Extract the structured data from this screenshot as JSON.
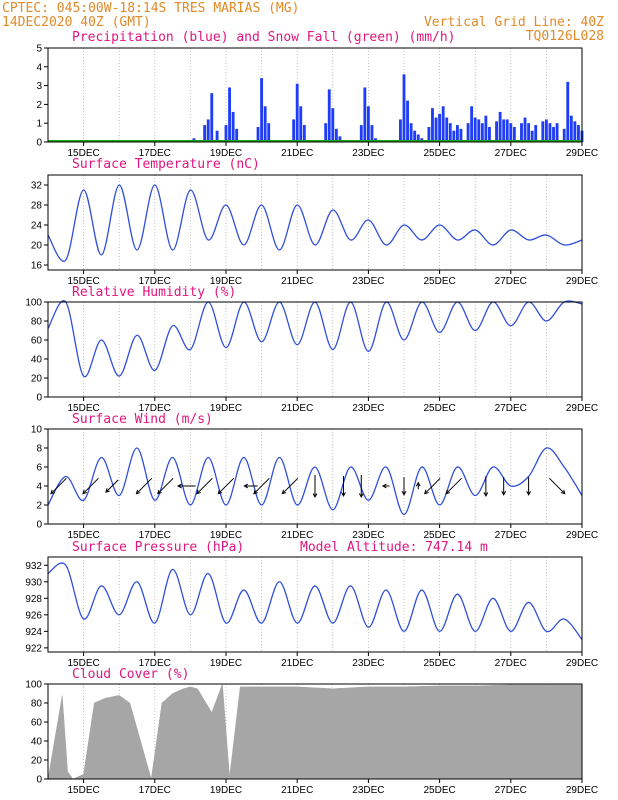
{
  "header": {
    "line1_left": "CPTEC:   045:00W-18:14S  TRES MARIAS (MG)",
    "line2_left": "14DEC2020 40Z (GMT)",
    "line2_right": "Vertical Grid Line: 40Z",
    "line3_right": "TQ0126L028"
  },
  "colors": {
    "header": "#e08a2a",
    "title": "#e0157f",
    "precip": "#1f3df5",
    "snow": "#1aa31a",
    "line": "#2f4fdc",
    "wind_arrow": "#000000",
    "cloud": "#a6a6a6"
  },
  "x_ticks": [
    "15DEC",
    "17DEC",
    "19DEC",
    "21DEC",
    "23DEC",
    "25DEC",
    "27DEC",
    "29DEC"
  ],
  "chart_data": [
    {
      "type": "bar",
      "title": "Precipitation (blue) and Snow Fall (green) (mm/h)",
      "x_unit": "day offset from 14DEC2020 00Z",
      "ylim": [
        0,
        5
      ],
      "yticks": [
        "0",
        "1",
        "2",
        "3",
        "4",
        "5"
      ],
      "series": [
        {
          "name": "Precipitation",
          "x": [
            4.1,
            4.4,
            4.5,
            4.6,
            4.75,
            5.0,
            5.1,
            5.2,
            5.3,
            5.9,
            6.0,
            6.1,
            6.2,
            6.9,
            7.0,
            7.1,
            7.2,
            7.8,
            7.9,
            8.0,
            8.1,
            8.2,
            8.8,
            8.9,
            9.0,
            9.1,
            9.2,
            9.9,
            10.0,
            10.1,
            10.2,
            10.3,
            10.4,
            10.5,
            10.7,
            10.8,
            10.9,
            11.0,
            11.1,
            11.2,
            11.3,
            11.4,
            11.5,
            11.6,
            11.8,
            11.9,
            12.0,
            12.1,
            12.2,
            12.3,
            12.4,
            12.6,
            12.7,
            12.8,
            12.9,
            13.0,
            13.1,
            13.3,
            13.4,
            13.5,
            13.6,
            13.7,
            13.9,
            14.0,
            14.1,
            14.2,
            14.3,
            14.5,
            14.6,
            14.7,
            14.8,
            14.9,
            15.0
          ],
          "values": [
            0.2,
            0.9,
            1.2,
            2.6,
            0.6,
            0.9,
            2.9,
            1.6,
            0.7,
            0.8,
            3.4,
            1.9,
            1.0,
            1.2,
            3.1,
            1.9,
            0.9,
            1.0,
            2.8,
            1.8,
            0.7,
            0.3,
            0.9,
            2.9,
            1.9,
            0.9,
            0.2,
            1.2,
            3.6,
            2.2,
            1.0,
            0.6,
            0.4,
            0.2,
            0.8,
            1.8,
            1.3,
            1.5,
            1.9,
            1.3,
            1.0,
            0.6,
            0.9,
            0.7,
            1.0,
            1.9,
            1.3,
            1.2,
            1.0,
            1.4,
            0.8,
            1.1,
            1.6,
            1.2,
            1.2,
            1.0,
            0.8,
            1.0,
            1.3,
            1.0,
            0.6,
            0.9,
            1.1,
            1.2,
            1.0,
            0.8,
            1.0,
            0.7,
            3.2,
            1.4,
            1.1,
            0.9,
            0.6
          ]
        },
        {
          "name": "Snow Fall",
          "x": [
            0,
            15
          ],
          "values": [
            0,
            0
          ]
        }
      ]
    },
    {
      "type": "line",
      "title": "Surface Temperature (nC)",
      "x_unit": "day offset from 14DEC2020 00Z",
      "ylim": [
        15,
        34
      ],
      "yticks": [
        "16",
        "20",
        "24",
        "28",
        "32"
      ],
      "x": [
        0.0,
        0.5,
        1.0,
        1.5,
        2.0,
        2.5,
        3.0,
        3.5,
        4.0,
        4.5,
        5.0,
        5.5,
        6.0,
        6.5,
        7.0,
        7.5,
        8.0,
        8.5,
        9.0,
        9.5,
        10.0,
        10.5,
        11.0,
        11.5,
        12.0,
        12.5,
        13.0,
        13.5,
        14.0,
        14.5,
        15.0
      ],
      "series": [
        {
          "values": [
            22,
            17,
            31,
            18,
            32,
            19,
            32,
            19,
            31,
            21,
            28,
            20,
            28,
            19,
            28,
            20,
            27,
            21,
            25,
            20,
            24,
            21,
            24,
            21,
            23,
            20,
            23,
            21,
            22,
            20,
            21
          ]
        }
      ]
    },
    {
      "type": "line",
      "title": "Relative Humidity (%)",
      "x_unit": "day offset from 14DEC2020 00Z",
      "ylim": [
        0,
        100
      ],
      "yticks": [
        "0",
        "20",
        "40",
        "60",
        "80",
        "100"
      ],
      "x": [
        0.0,
        0.5,
        1.0,
        1.5,
        2.0,
        2.5,
        3.0,
        3.5,
        4.0,
        4.5,
        5.0,
        5.5,
        6.0,
        6.5,
        7.0,
        7.5,
        8.0,
        8.5,
        9.0,
        9.5,
        10.0,
        10.5,
        11.0,
        11.5,
        12.0,
        12.5,
        13.0,
        13.5,
        14.0,
        14.5,
        15.0
      ],
      "series": [
        {
          "values": [
            72,
            100,
            22,
            60,
            22,
            65,
            28,
            75,
            50,
            100,
            52,
            100,
            58,
            100,
            55,
            100,
            50,
            100,
            48,
            100,
            60,
            100,
            68,
            100,
            70,
            100,
            75,
            100,
            80,
            100,
            98
          ]
        }
      ]
    },
    {
      "type": "line",
      "title": "Surface Wind (m/s)",
      "x_unit": "day offset from 14DEC2020 00Z",
      "ylim": [
        0,
        10
      ],
      "yticks": [
        "0",
        "2",
        "4",
        "6",
        "8",
        "10"
      ],
      "x": [
        0.0,
        0.5,
        1.0,
        1.5,
        2.0,
        2.5,
        3.0,
        3.5,
        4.0,
        4.5,
        5.0,
        5.5,
        6.0,
        6.5,
        7.0,
        7.5,
        8.0,
        8.5,
        9.0,
        9.5,
        10.0,
        10.5,
        11.0,
        11.5,
        12.0,
        12.5,
        13.0,
        13.5,
        14.0,
        14.5,
        15.0
      ],
      "series": [
        {
          "values": [
            2,
            5,
            2.5,
            7,
            3,
            8,
            2.5,
            7,
            2,
            7,
            2,
            7,
            2,
            7,
            2,
            6,
            1.5,
            6,
            2.5,
            6,
            1,
            6,
            2,
            6,
            3,
            6,
            4,
            5,
            8,
            6,
            3
          ]
        }
      ],
      "vectors": [
        {
          "x": 0.3,
          "dir": "sw",
          "len": 1.0
        },
        {
          "x": 1.2,
          "dir": "sw",
          "len": 1.0
        },
        {
          "x": 1.8,
          "dir": "sw",
          "len": 0.8
        },
        {
          "x": 2.7,
          "dir": "sw",
          "len": 1.0
        },
        {
          "x": 3.3,
          "dir": "sw",
          "len": 1.0
        },
        {
          "x": 3.9,
          "dir": "w",
          "len": 0.8
        },
        {
          "x": 4.4,
          "dir": "sw",
          "len": 1.0
        },
        {
          "x": 5.0,
          "dir": "sw",
          "len": 1.0
        },
        {
          "x": 5.7,
          "dir": "w",
          "len": 0.6
        },
        {
          "x": 6.0,
          "dir": "sw",
          "len": 1.0
        },
        {
          "x": 6.8,
          "dir": "sw",
          "len": 1.0
        },
        {
          "x": 7.5,
          "dir": "s",
          "len": 1.0
        },
        {
          "x": 8.3,
          "dir": "s",
          "len": 0.9
        },
        {
          "x": 8.8,
          "dir": "s",
          "len": 1.0
        },
        {
          "x": 9.5,
          "dir": "w",
          "len": 0.3
        },
        {
          "x": 10.0,
          "dir": "s",
          "len": 0.8
        },
        {
          "x": 10.4,
          "dir": "n",
          "len": 0.3
        },
        {
          "x": 10.8,
          "dir": "sw",
          "len": 1.0
        },
        {
          "x": 11.4,
          "dir": "sw",
          "len": 1.0
        },
        {
          "x": 12.3,
          "dir": "s",
          "len": 0.9
        },
        {
          "x": 12.8,
          "dir": "s",
          "len": 0.8
        },
        {
          "x": 13.5,
          "dir": "s",
          "len": 0.8
        },
        {
          "x": 14.3,
          "dir": "se",
          "len": 1.0
        }
      ]
    },
    {
      "type": "line",
      "title": "Surface Pressure (hPa)",
      "annotation": "Model Altitude: 747.14  m",
      "x_unit": "day offset from 14DEC2020 00Z",
      "ylim": [
        921.5,
        933
      ],
      "yticks": [
        "922",
        "924",
        "926",
        "928",
        "930",
        "932"
      ],
      "x": [
        0.0,
        0.5,
        1.0,
        1.5,
        2.0,
        2.5,
        3.0,
        3.5,
        4.0,
        4.5,
        5.0,
        5.5,
        6.0,
        6.5,
        7.0,
        7.5,
        8.0,
        8.5,
        9.0,
        9.5,
        10.0,
        10.5,
        11.0,
        11.5,
        12.0,
        12.5,
        13.0,
        13.5,
        14.0,
        14.5,
        15.0
      ],
      "series": [
        {
          "values": [
            931,
            932,
            925.5,
            929.5,
            926,
            930,
            925,
            931.5,
            926,
            931,
            925,
            929,
            925,
            930,
            925,
            929.5,
            925,
            929.5,
            924.5,
            929,
            924,
            929,
            924,
            928.5,
            924,
            928,
            924,
            927.5,
            924,
            925.5,
            923
          ]
        }
      ]
    },
    {
      "type": "area",
      "title": "Cloud Cover (%)",
      "x_unit": "day offset from 14DEC2020 00Z",
      "ylim": [
        0,
        100
      ],
      "yticks": [
        "0",
        "20",
        "40",
        "60",
        "80",
        "100"
      ],
      "x": [
        0.0,
        0.4,
        0.55,
        0.7,
        1.0,
        1.3,
        1.6,
        2.0,
        2.3,
        2.6,
        2.9,
        3.2,
        3.5,
        3.8,
        4.0,
        4.2,
        4.6,
        4.9,
        5.1,
        5.4,
        6.0,
        6.5,
        7.0,
        8.0,
        9.0,
        10.0,
        11.0,
        12.0,
        13.0,
        14.0,
        15.0
      ],
      "series": [
        {
          "name": "Cloud",
          "values": [
            0,
            88,
            8,
            0,
            5,
            80,
            85,
            88,
            80,
            40,
            0,
            80,
            90,
            95,
            97,
            95,
            70,
            100,
            2,
            97,
            97,
            97,
            97,
            95,
            97,
            97,
            98,
            98,
            99,
            99,
            99
          ]
        }
      ]
    }
  ]
}
